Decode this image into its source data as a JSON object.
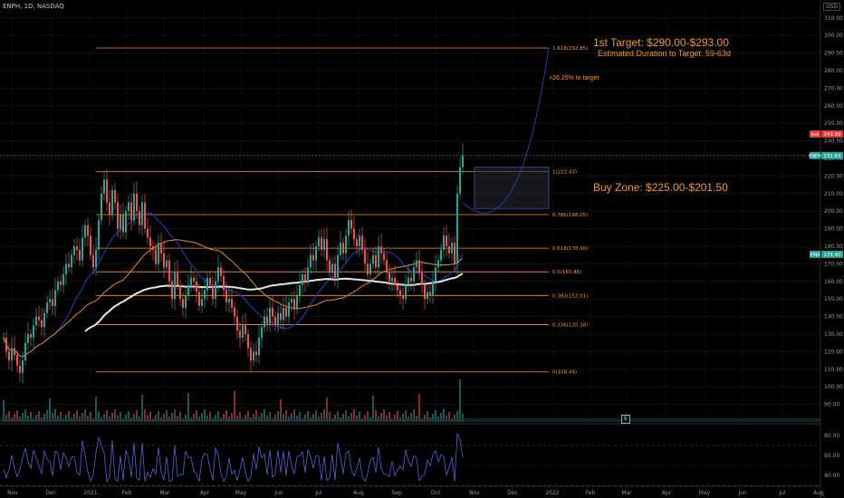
{
  "header": {
    "symbol": "ENPH, 1D, NASDAQ",
    "currency": "USD"
  },
  "annotations": {
    "target_title": "1st Target: $290.00-$293.00",
    "target_duration": "Estimated Duration to Target: 59-63d",
    "target_pct": "+26.25% to target",
    "buy_zone": "Buy Zone: $225.00-$201.50"
  },
  "chart_data": {
    "type": "candlestick",
    "title": "",
    "x_ticks": [
      "Nov",
      "Dec",
      "2021",
      "Feb",
      "Mar",
      "Apr",
      "May",
      "Jun",
      "Jul",
      "Aug",
      "Sep",
      "Oct",
      "Nov",
      "Dec",
      "2022",
      "Feb",
      "Mar",
      "Apr",
      "May",
      "Jun",
      "Jul",
      "Aug"
    ],
    "y_ticks": [
      90,
      100,
      110,
      120,
      130,
      140,
      150,
      160,
      170,
      180,
      190,
      200,
      210,
      220,
      230,
      240,
      250,
      260,
      270,
      280,
      290,
      300,
      310
    ],
    "ylim": [
      80,
      314
    ],
    "rsi_ticks": [
      40,
      60,
      80
    ],
    "rsi_ylim": [
      30,
      90
    ],
    "fib_levels": [
      {
        "label": "1.618(292.85)",
        "value": 292.85
      },
      {
        "label": "1(222.43)",
        "value": 222.43
      },
      {
        "label": "0.786(198.05)",
        "value": 198.05
      },
      {
        "label": "0.618(178.90)",
        "value": 178.9
      },
      {
        "label": "0.5(165.46)",
        "value": 165.46
      },
      {
        "label": "0.382(152.01)",
        "value": 152.01
      },
      {
        "label": "0.236(135.38)",
        "value": 135.38
      },
      {
        "label": "0(108.49)",
        "value": 108.49
      }
    ],
    "price_badges": [
      {
        "label": "Ask",
        "value": "243.89",
        "color": "#e53935",
        "y": 243.89
      },
      {
        "label": "ENPH",
        "value": "231.63",
        "color": "#26a69a",
        "y": 231.63
      },
      {
        "label": "EMA",
        "value": "175.40",
        "color": "#26a69a",
        "y": 175.4
      }
    ],
    "buy_zone": {
      "low": 201.5,
      "high": 225.0
    },
    "target": {
      "low": 290,
      "high": 293
    },
    "closes": [
      128,
      120,
      115,
      122,
      118,
      112,
      108,
      115,
      125,
      130,
      128,
      135,
      140,
      138,
      134,
      142,
      148,
      150,
      146,
      155,
      160,
      158,
      164,
      170,
      168,
      175,
      180,
      178,
      172,
      185,
      192,
      186,
      175,
      168,
      178,
      195,
      210,
      218,
      205,
      198,
      212,
      205,
      190,
      198,
      188,
      200,
      205,
      195,
      210,
      200,
      192,
      205,
      190,
      185,
      180,
      178,
      170,
      182,
      176,
      168,
      172,
      160,
      150,
      165,
      158,
      150,
      145,
      152,
      158,
      162,
      160,
      154,
      146,
      150,
      155,
      162,
      158,
      150,
      160,
      168,
      163,
      155,
      148,
      150,
      145,
      140,
      132,
      128,
      135,
      130,
      122,
      115,
      120,
      118,
      128,
      134,
      140,
      136,
      145,
      140,
      135,
      142,
      138,
      145,
      140,
      148,
      150,
      144,
      152,
      158,
      164,
      160,
      168,
      175,
      172,
      180,
      185,
      178,
      184,
      172,
      165,
      170,
      162,
      175,
      182,
      176,
      186,
      195,
      190,
      184,
      180,
      186,
      178,
      170,
      164,
      170,
      175,
      168,
      180,
      176,
      172,
      165,
      160,
      162,
      158,
      155,
      152,
      150,
      158,
      162,
      160,
      168,
      172,
      165,
      158,
      150,
      154,
      152,
      160,
      168,
      172,
      178,
      186,
      180,
      176,
      182,
      170,
      210,
      225,
      231.63
    ]
  }
}
